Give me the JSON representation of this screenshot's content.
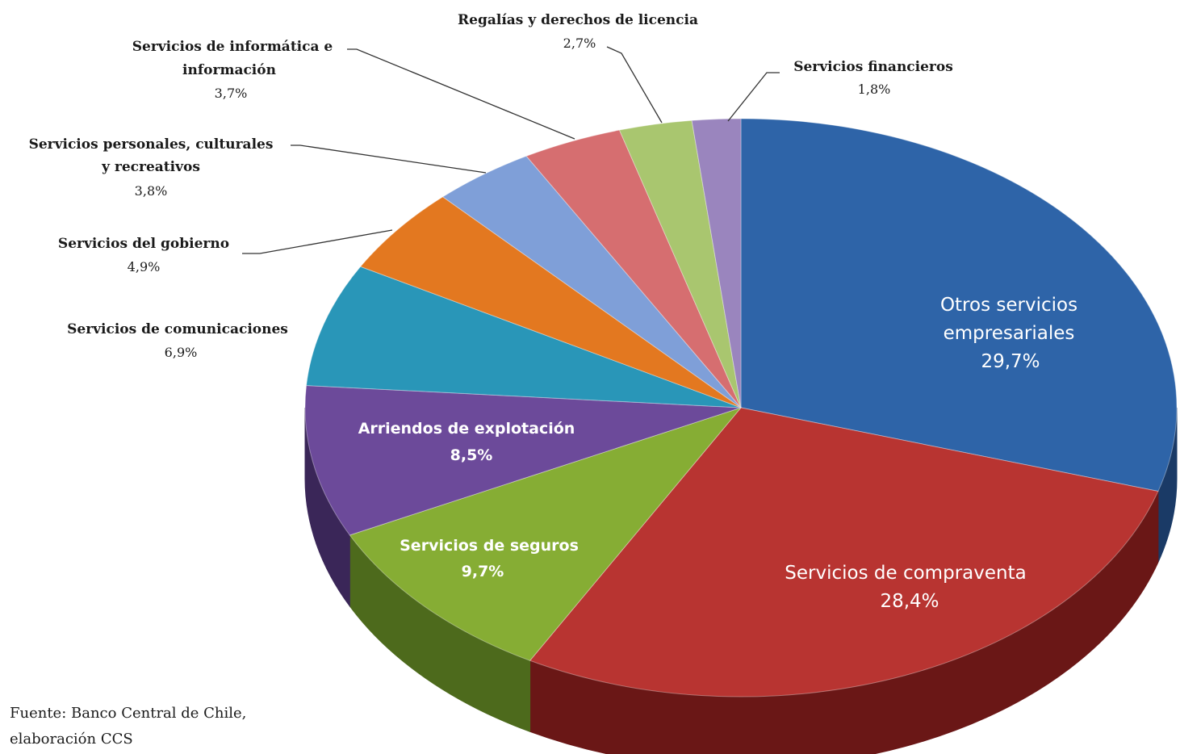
{
  "chart_data": {
    "type": "pie",
    "style": "3d",
    "slices": [
      {
        "label": "Otros servicios empresariales",
        "label_lines": [
          "Otros servicios",
          "empresariales"
        ],
        "value": 29.7,
        "value_label": "29,7%",
        "color": "#2E64A8",
        "side": "#1A3A66",
        "label_position": "inside"
      },
      {
        "label": "Servicios de compraventa",
        "label_lines": [
          "Servicios de compraventa"
        ],
        "value": 28.4,
        "value_label": "28,4%",
        "color": "#B83431",
        "side": "#6A1716",
        "label_position": "inside"
      },
      {
        "label": "Servicios de seguros",
        "label_lines": [
          "Servicios de seguros"
        ],
        "value": 9.7,
        "value_label": "9,7%",
        "color": "#86AD34",
        "side": "#4D6A1C",
        "label_position": "inside"
      },
      {
        "label": "Arriendos de explotación",
        "label_lines": [
          "Arriendos de explotación"
        ],
        "value": 8.5,
        "value_label": "8,5%",
        "color": "#6C4A9A",
        "side": "#3A2658",
        "label_position": "inside"
      },
      {
        "label": "Servicios de comunicaciones",
        "label_lines": [
          "Servicios de comunicaciones"
        ],
        "value": 6.9,
        "value_label": "6,9%",
        "color": "#2996B8",
        "side": "#15566B",
        "label_position": "outside"
      },
      {
        "label": "Servicios del gobierno",
        "label_lines": [
          "Servicios del gobierno"
        ],
        "value": 4.9,
        "value_label": "4,9%",
        "color": "#E37820",
        "side": "#8A4410",
        "label_position": "outside"
      },
      {
        "label": "Servicios personales, culturales y recreativos",
        "label_lines": [
          "Servicios personales, culturales",
          "y recreativos"
        ],
        "value": 3.8,
        "value_label": "3,8%",
        "color": "#7F9FD8",
        "side": "#4A5E84",
        "label_position": "outside"
      },
      {
        "label": "Servicios de informática e información",
        "label_lines": [
          "Servicios de informática e",
          "información"
        ],
        "value": 3.7,
        "value_label": "3,7%",
        "color": "#D66E70",
        "side": "#84403F",
        "label_position": "outside"
      },
      {
        "label": "Regalías y derechos de licencia",
        "label_lines": [
          "Regalías y derechos de licencia"
        ],
        "value": 2.7,
        "value_label": "2,7%",
        "color": "#A9C66F",
        "side": "#617340",
        "label_position": "outside"
      },
      {
        "label": "Servicios financieros",
        "label_lines": [
          "Servicios financieros"
        ],
        "value": 1.8,
        "value_label": "1,8%",
        "color": "#9A85BE",
        "side": "#594B70",
        "label_position": "outside"
      }
    ]
  },
  "source": {
    "line1": "Fuente: Banco Central de Chile,",
    "line2": "elaboración CCS"
  }
}
